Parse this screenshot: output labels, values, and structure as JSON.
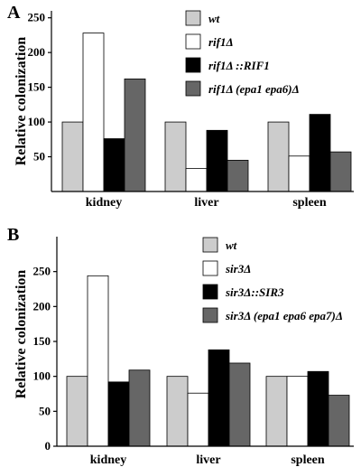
{
  "chart_data": [
    {
      "type": "bar",
      "panel": "A",
      "ylabel": "Relative colonization",
      "xlabel": "",
      "categories": [
        "kidney",
        "liver",
        "spleen"
      ],
      "yticks": [
        50,
        100,
        150,
        200,
        250
      ],
      "ylim": [
        0,
        260
      ],
      "series": [
        {
          "name": "wt",
          "color": "#cccccc",
          "values": [
            100,
            100,
            100
          ]
        },
        {
          "name": "rif1Δ",
          "color": "#ffffff",
          "values": [
            228,
            33,
            51
          ]
        },
        {
          "name": "rif1Δ ::RIF1",
          "color": "#000000",
          "values": [
            76,
            88,
            111
          ]
        },
        {
          "name": "rif1Δ (epa1 epa6)Δ",
          "color": "#666666",
          "values": [
            162,
            45,
            57
          ]
        }
      ]
    },
    {
      "type": "bar",
      "panel": "B",
      "ylabel": "Relative colonization",
      "xlabel": "",
      "categories": [
        "kidney",
        "liver",
        "spleen"
      ],
      "yticks": [
        0,
        50,
        100,
        150,
        200,
        250
      ],
      "ylim": [
        0,
        300
      ],
      "series": [
        {
          "name": "wt",
          "color": "#cccccc",
          "values": [
            100,
            100,
            100
          ]
        },
        {
          "name": "sir3Δ",
          "color": "#ffffff",
          "values": [
            244,
            76,
            100
          ]
        },
        {
          "name": "sir3Δ::SIR3",
          "color": "#000000",
          "values": [
            92,
            138,
            107
          ]
        },
        {
          "name": "sir3Δ (epa1 epa6 epa7)Δ",
          "color": "#666666",
          "values": [
            109,
            119,
            73
          ]
        }
      ]
    }
  ]
}
